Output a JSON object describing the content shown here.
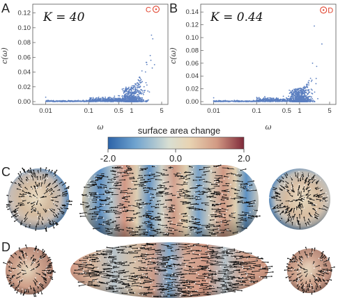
{
  "chart_data": [
    {
      "type": "scatter",
      "panel": "A",
      "annotation": "K = 40",
      "xlabel": "ω",
      "ylabel": "c(ω)",
      "xscale": "log",
      "xlim": [
        0.005,
        7
      ],
      "ylim": [
        0,
        0.13
      ],
      "xticks": [
        "0.01",
        "0.1",
        "0.5",
        "1",
        "5"
      ],
      "xtick_values": [
        0.01,
        0.1,
        0.5,
        1,
        5
      ],
      "yticks": [
        "0.00",
        "0.02",
        "0.04",
        "0.06",
        "0.08",
        "0.10",
        "0.12"
      ],
      "ytick_values": [
        0,
        0.02,
        0.04,
        0.06,
        0.08,
        0.1,
        0.12
      ],
      "marker": {
        "label": "C",
        "x": 3.7,
        "y": 0.125
      },
      "points_summary": {
        "x_range": [
          0.01,
          5.5
        ],
        "y_range": [
          0,
          0.09
        ],
        "peaks": [
          {
            "x": 2.9,
            "y": 0.09
          },
          {
            "x": 3.1,
            "y": 0.085
          },
          {
            "x": 2.8,
            "y": 0.056
          },
          {
            "x": 3.4,
            "y": 0.05
          }
        ]
      },
      "color": "#5b7fc0"
    },
    {
      "type": "scatter",
      "panel": "B",
      "annotation": "K = 0.44",
      "xlabel": "ω",
      "ylabel": "c(ω)",
      "xscale": "log",
      "xlim": [
        0.005,
        7
      ],
      "ylim": [
        0,
        0.15
      ],
      "xticks": [
        "0.01",
        "0.1",
        "0.5",
        "1",
        "5"
      ],
      "xtick_values": [
        0.01,
        0.1,
        0.5,
        1,
        5
      ],
      "yticks": [
        "0.00",
        "0.02",
        "0.04",
        "0.06",
        "0.08",
        "0.10",
        "0.12",
        "0.14"
      ],
      "ytick_values": [
        0,
        0.02,
        0.04,
        0.06,
        0.08,
        0.1,
        0.12,
        0.14
      ],
      "marker": {
        "label": "D",
        "x": 3.6,
        "y": 0.143
      },
      "points_summary": {
        "x_range": [
          0.01,
          5.5
        ],
        "y_range": [
          0,
          0.12
        ],
        "peaks": [
          {
            "x": 2.2,
            "y": 0.118
          },
          {
            "x": 3.3,
            "y": 0.09
          },
          {
            "x": 2.0,
            "y": 0.06
          },
          {
            "x": 2.5,
            "y": 0.055
          }
        ]
      },
      "color": "#5b7fc0"
    }
  ],
  "colorbar": {
    "title": "surface area change",
    "min_label": "-2.0",
    "mid_label": "0.0",
    "max_label": "2.0",
    "colors": [
      "#2c63a8",
      "#6fa3cf",
      "#d9dfd2",
      "#e8d3b2",
      "#d29a84",
      "#7f2a3a"
    ]
  },
  "panels": {
    "C": {
      "letter": "C"
    },
    "D": {
      "letter": "D"
    }
  },
  "panel_letters": {
    "A": "A",
    "B": "B"
  }
}
